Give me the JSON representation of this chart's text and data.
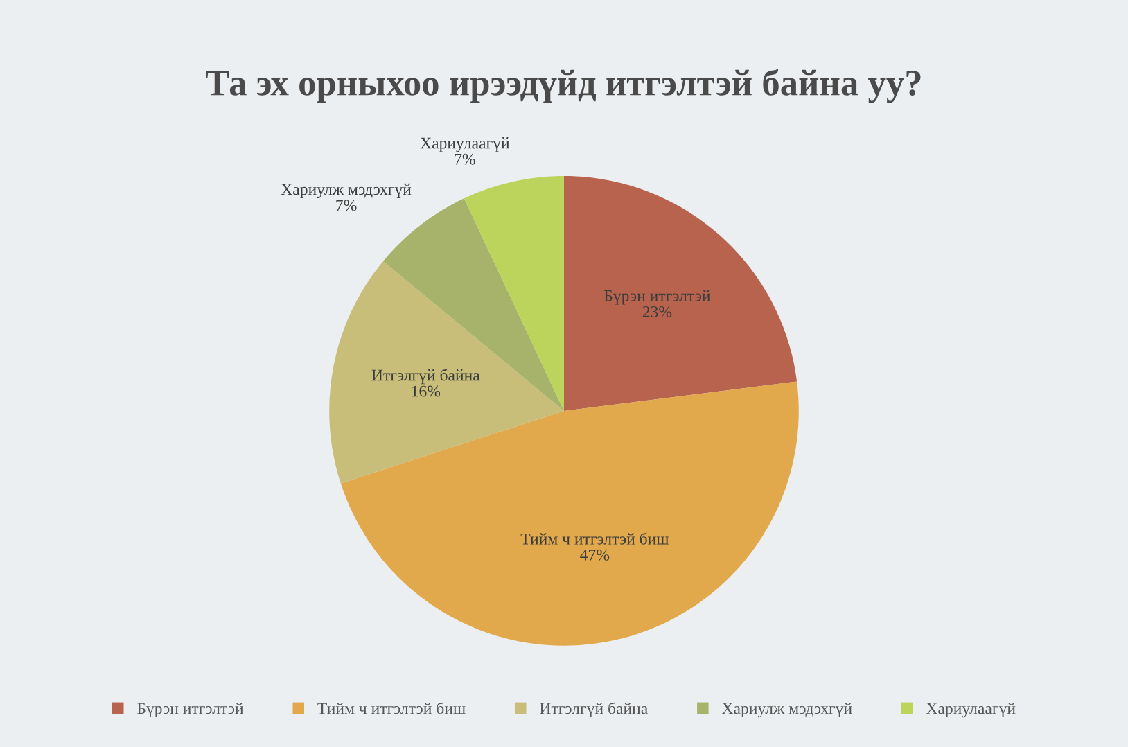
{
  "chart_data": {
    "type": "pie",
    "title": "Та эх орныхоо ирээдүйд итгэлтэй байна уу?",
    "categories": [
      "Бүрэн итгэлтэй",
      "Тийм ч итгэлтэй биш",
      "Итгэлгүй байна",
      "Хариулж мэдэхгүй",
      "Хариулаагүй"
    ],
    "values": [
      23,
      47,
      16,
      7,
      7
    ],
    "value_labels": [
      "23%",
      "47%",
      "16%",
      "7%",
      "7%"
    ],
    "colors": [
      "#b8634e",
      "#e2a94c",
      "#c8be7a",
      "#a7b36b",
      "#bcd45c"
    ],
    "legend": "bottom"
  }
}
